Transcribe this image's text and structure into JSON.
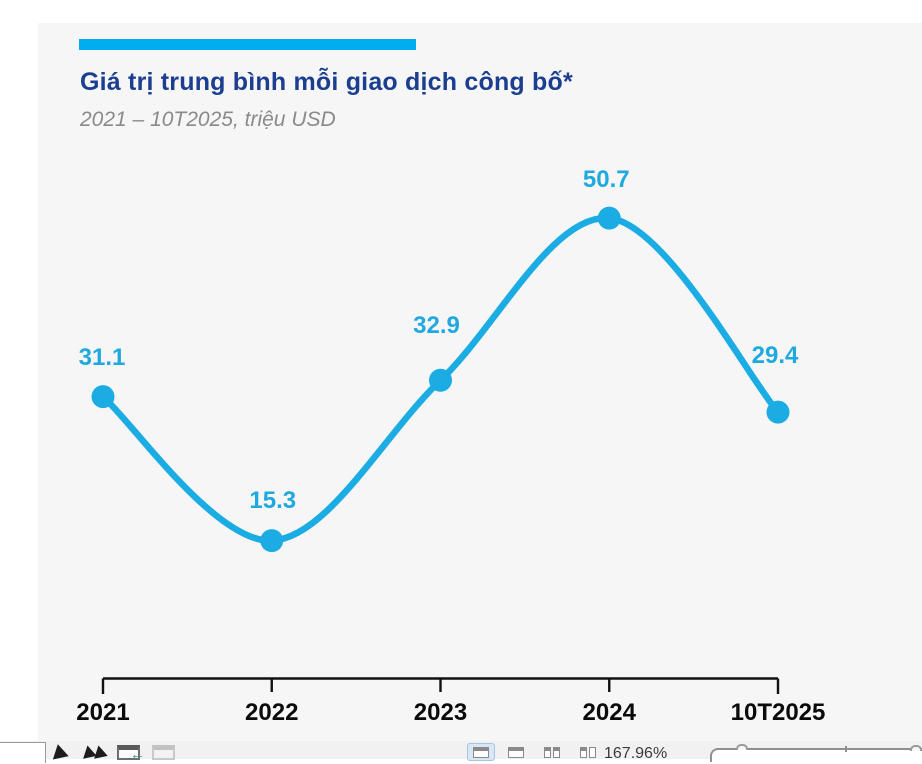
{
  "page": {
    "background": "#ffffff",
    "panel_background": "#F6F6F6"
  },
  "header": {
    "accent_bar_color": "#00AEEF",
    "title": "Giá trị trung bình mỗi giao dịch công bố*",
    "title_color": "#1B3E90",
    "subtitle": "2021 – 10T2025, triệu USD",
    "subtitle_color": "#8A8A8A"
  },
  "chart_data": {
    "type": "line",
    "title": "Giá trị trung bình mỗi giao dịch công bố*",
    "subtitle": "2021 – 10T2025, triệu USD",
    "unit": "triệu USD",
    "categories": [
      "2021",
      "2022",
      "2023",
      "2024",
      "10T2025"
    ],
    "values": [
      31.1,
      15.3,
      32.9,
      50.7,
      29.4
    ],
    "ylim": [
      0,
      55
    ],
    "grid": false,
    "legend": false,
    "data_labels": true,
    "marker": "circle",
    "line_color": "#1BACE4",
    "marker_color": "#1BACE4",
    "label_color": "#1FA9DF",
    "axis_color": "#111111",
    "smooth": true
  },
  "statusbar": {
    "zoom_level": "167.96%",
    "icons": [
      "play-icon",
      "fast-forward-icon",
      "window-arrow-icon",
      "window-disabled-icon",
      "view-normal-icon",
      "view-outline-icon",
      "view-slide-sorter-icon",
      "view-reading-icon"
    ]
  }
}
